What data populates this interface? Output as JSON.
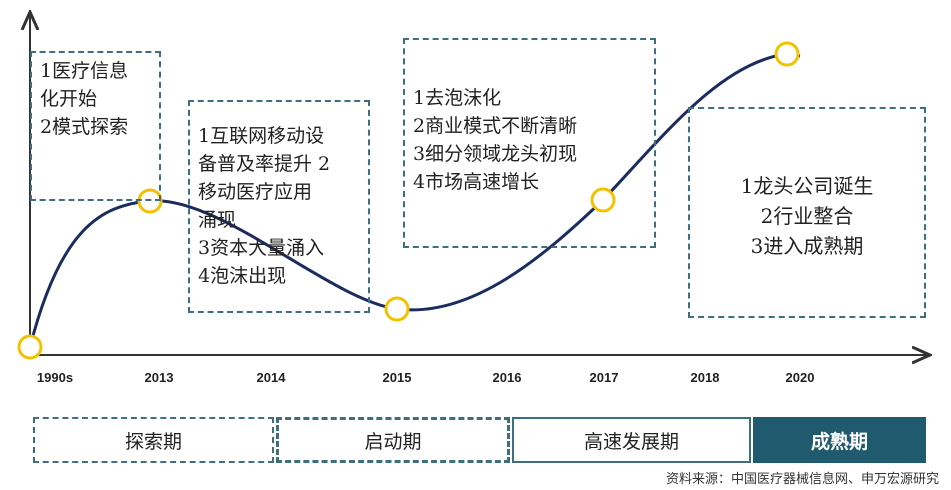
{
  "colors": {
    "curve": "#1b2c5e",
    "marker_fill": "#ffffff",
    "marker_stroke": "#f2c200",
    "axis": "#333333",
    "box_border": "#3f6e7f",
    "mature_fill": "#1f5a6e"
  },
  "timeline": {
    "years": [
      "1990s",
      "2013",
      "2014",
      "2015",
      "2016",
      "2017",
      "2018",
      "2020"
    ]
  },
  "boxes": [
    {
      "lines": [
        "1医疗信息",
        "化开始",
        "2模式探索"
      ]
    },
    {
      "lines": [
        "1互联网移动设",
        "备普及率提升 2",
        "移动医疗应用",
        "涌现",
        "3资本大量涌入",
        "4泡沫出现"
      ]
    },
    {
      "lines": [
        "1去泡沫化",
        "2商业模式不断清晰",
        "3细分领域龙头初现",
        "4市场高速增长"
      ]
    },
    {
      "lines": [
        "1龙头公司诞生",
        "2行业整合",
        "3进入成熟期"
      ]
    }
  ],
  "phases": [
    "探索期",
    "启动期",
    "高速发展期",
    "成熟期"
  ],
  "source": "资料来源：中国医疗器械信息网、申万宏源研究"
}
